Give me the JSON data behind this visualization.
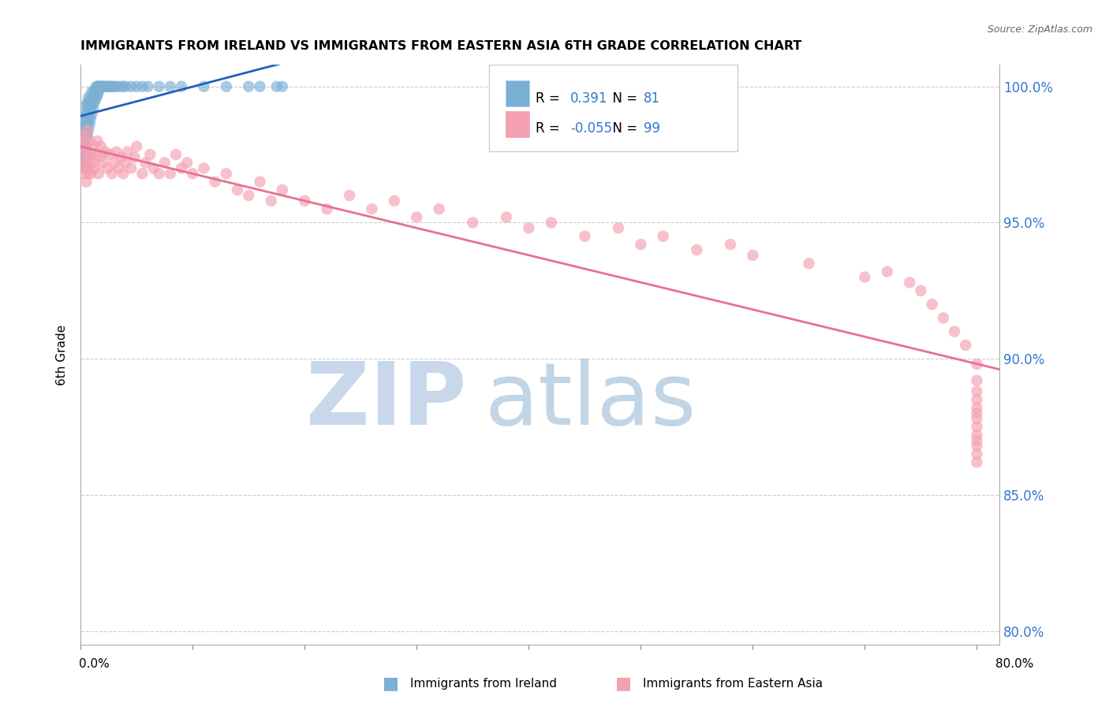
{
  "title": "IMMIGRANTS FROM IRELAND VS IMMIGRANTS FROM EASTERN ASIA 6TH GRADE CORRELATION CHART",
  "source": "Source: ZipAtlas.com",
  "ylabel": "6th Grade",
  "ireland_R": 0.391,
  "ireland_N": 81,
  "eastern_asia_R": -0.055,
  "eastern_asia_N": 99,
  "ireland_color": "#7bafd4",
  "eastern_asia_color": "#f4a0b0",
  "ireland_line_color": "#2060c0",
  "eastern_asia_line_color": "#e87090",
  "background_color": "#ffffff",
  "grid_color": "#cccccc",
  "xlim": [
    0.0,
    0.82
  ],
  "ylim": [
    0.795,
    1.008
  ],
  "y_ticks": [
    0.8,
    0.85,
    0.9,
    0.95,
    1.0
  ],
  "x_ticks": [
    0.0,
    0.1,
    0.2,
    0.3,
    0.4,
    0.5,
    0.6,
    0.7,
    0.8
  ],
  "ireland_x": [
    0.001,
    0.001,
    0.001,
    0.002,
    0.002,
    0.002,
    0.002,
    0.002,
    0.003,
    0.003,
    0.003,
    0.003,
    0.003,
    0.003,
    0.004,
    0.004,
    0.004,
    0.004,
    0.004,
    0.005,
    0.005,
    0.005,
    0.005,
    0.005,
    0.006,
    0.006,
    0.006,
    0.006,
    0.007,
    0.007,
    0.007,
    0.007,
    0.008,
    0.008,
    0.008,
    0.009,
    0.009,
    0.009,
    0.01,
    0.01,
    0.01,
    0.011,
    0.011,
    0.012,
    0.012,
    0.013,
    0.013,
    0.014,
    0.014,
    0.015,
    0.015,
    0.016,
    0.016,
    0.017,
    0.018,
    0.019,
    0.02,
    0.021,
    0.022,
    0.024,
    0.025,
    0.027,
    0.028,
    0.03,
    0.032,
    0.035,
    0.038,
    0.04,
    0.045,
    0.05,
    0.055,
    0.06,
    0.07,
    0.08,
    0.09,
    0.11,
    0.13,
    0.15,
    0.16,
    0.175,
    0.18
  ],
  "ireland_y": [
    0.978,
    0.982,
    0.985,
    0.972,
    0.975,
    0.978,
    0.98,
    0.984,
    0.97,
    0.974,
    0.977,
    0.98,
    0.984,
    0.988,
    0.975,
    0.979,
    0.982,
    0.986,
    0.99,
    0.978,
    0.981,
    0.985,
    0.989,
    0.993,
    0.982,
    0.986,
    0.99,
    0.994,
    0.984,
    0.988,
    0.992,
    0.996,
    0.986,
    0.99,
    0.994,
    0.988,
    0.992,
    0.996,
    0.99,
    0.994,
    0.998,
    0.992,
    0.996,
    0.994,
    0.998,
    0.995,
    0.999,
    0.996,
    1.0,
    0.997,
    1.0,
    0.998,
    1.0,
    1.0,
    1.0,
    1.0,
    1.0,
    1.0,
    1.0,
    1.0,
    1.0,
    1.0,
    1.0,
    1.0,
    1.0,
    1.0,
    1.0,
    1.0,
    1.0,
    1.0,
    1.0,
    1.0,
    1.0,
    1.0,
    1.0,
    1.0,
    1.0,
    1.0,
    1.0,
    1.0,
    1.0
  ],
  "eastern_asia_x": [
    0.001,
    0.002,
    0.002,
    0.003,
    0.003,
    0.004,
    0.004,
    0.005,
    0.005,
    0.006,
    0.006,
    0.007,
    0.007,
    0.008,
    0.008,
    0.009,
    0.01,
    0.011,
    0.012,
    0.013,
    0.014,
    0.015,
    0.016,
    0.017,
    0.018,
    0.02,
    0.022,
    0.024,
    0.026,
    0.028,
    0.03,
    0.032,
    0.034,
    0.036,
    0.038,
    0.04,
    0.042,
    0.045,
    0.048,
    0.05,
    0.055,
    0.058,
    0.062,
    0.065,
    0.07,
    0.075,
    0.08,
    0.085,
    0.09,
    0.095,
    0.1,
    0.11,
    0.12,
    0.13,
    0.14,
    0.15,
    0.16,
    0.17,
    0.18,
    0.2,
    0.22,
    0.24,
    0.26,
    0.28,
    0.3,
    0.32,
    0.35,
    0.38,
    0.4,
    0.42,
    0.45,
    0.48,
    0.5,
    0.52,
    0.55,
    0.58,
    0.6,
    0.65,
    0.7,
    0.72,
    0.74,
    0.75,
    0.76,
    0.77,
    0.78,
    0.79,
    0.8,
    0.8,
    0.8,
    0.8,
    0.8,
    0.8,
    0.8,
    0.8,
    0.8,
    0.8,
    0.8,
    0.8,
    0.8
  ],
  "eastern_asia_y": [
    0.978,
    0.97,
    0.982,
    0.968,
    0.975,
    0.972,
    0.98,
    0.965,
    0.977,
    0.97,
    0.984,
    0.968,
    0.975,
    0.972,
    0.98,
    0.968,
    0.975,
    0.972,
    0.978,
    0.97,
    0.975,
    0.98,
    0.968,
    0.974,
    0.978,
    0.972,
    0.976,
    0.97,
    0.975,
    0.968,
    0.972,
    0.976,
    0.97,
    0.974,
    0.968,
    0.972,
    0.976,
    0.97,
    0.974,
    0.978,
    0.968,
    0.972,
    0.975,
    0.97,
    0.968,
    0.972,
    0.968,
    0.975,
    0.97,
    0.972,
    0.968,
    0.97,
    0.965,
    0.968,
    0.962,
    0.96,
    0.965,
    0.958,
    0.962,
    0.958,
    0.955,
    0.96,
    0.955,
    0.958,
    0.952,
    0.955,
    0.95,
    0.952,
    0.948,
    0.95,
    0.945,
    0.948,
    0.942,
    0.945,
    0.94,
    0.942,
    0.938,
    0.935,
    0.93,
    0.932,
    0.928,
    0.925,
    0.92,
    0.915,
    0.91,
    0.905,
    0.898,
    0.892,
    0.888,
    0.885,
    0.882,
    0.88,
    0.878,
    0.875,
    0.872,
    0.87,
    0.868,
    0.865,
    0.862
  ]
}
